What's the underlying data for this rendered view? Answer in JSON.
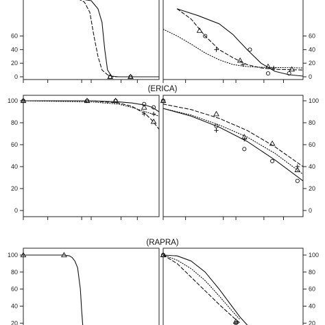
{
  "figure": {
    "group_labels": [
      "(ERICA)",
      "(RAPRA)"
    ]
  },
  "chart_data": [
    {
      "type": "line",
      "panel": "row1-left",
      "yticks": [
        "0",
        "20",
        "40",
        "60"
      ],
      "ylim": [
        0,
        110
      ],
      "series": [
        {
          "style": "solid",
          "curve": {
            "x": [
              0.0,
              0.4,
              0.5,
              0.55,
              0.58,
              0.6,
              0.62,
              0.65,
              0.7,
              1.0
            ],
            "y": [
              115,
              115,
              112,
              100,
              80,
              40,
              10,
              1,
              0,
              0
            ]
          },
          "markers": {
            "shape": "triangle",
            "x": [
              0.64,
              0.79
            ],
            "y": [
              0,
              0
            ]
          }
        },
        {
          "style": "dashed",
          "curve": {
            "x": [
              0.0,
              0.4,
              0.45,
              0.49,
              0.52,
              0.55,
              0.58,
              0.62,
              0.66,
              1.0
            ],
            "y": [
              115,
              115,
              110,
              95,
              60,
              30,
              10,
              3,
              0,
              0
            ]
          },
          "markers": {
            "shape": "circle",
            "x": [
              0.64,
              0.79
            ],
            "y": [
              0,
              0
            ]
          }
        }
      ]
    },
    {
      "type": "line",
      "panel": "row1-right",
      "yticks": [
        "0",
        "20",
        "40",
        "60"
      ],
      "ylim": [
        0,
        110
      ],
      "series": [
        {
          "style": "solid",
          "curve": {
            "x": [
              0.1,
              0.25,
              0.4,
              0.5,
              0.6,
              0.7,
              0.8,
              0.9,
              1.0
            ],
            "y": [
              100,
              90,
              78,
              62,
              40,
              20,
              8,
              3,
              1
            ]
          },
          "markers": {
            "shape": "circle",
            "x": [
              0.3,
              0.62,
              0.75,
              0.9
            ],
            "y": [
              60,
              40,
              5,
              5
            ]
          }
        },
        {
          "style": "dashed",
          "curve": {
            "x": [
              0.1,
              0.2,
              0.3,
              0.4,
              0.5,
              0.6,
              0.7,
              0.8,
              1.0
            ],
            "y": [
              100,
              85,
              60,
              40,
              28,
              18,
              13,
              11,
              10
            ]
          },
          "markers": {
            "shape": "triangle",
            "x": [
              0.26,
              0.55,
              0.75,
              0.92
            ],
            "y": [
              68,
              24,
              15,
              11
            ]
          }
        },
        {
          "style": "dotted",
          "curve": {
            "x": [
              0.0,
              0.1,
              0.2,
              0.3,
              0.4,
              0.5,
              0.6,
              0.7,
              1.0
            ],
            "y": [
              70,
              60,
              48,
              35,
              25,
              18,
              15,
              14,
              13
            ]
          },
          "markers": {
            "shape": "plus",
            "x": [
              0.38,
              0.57,
              0.79
            ],
            "y": [
              40,
              18,
              13
            ]
          }
        }
      ]
    },
    {
      "type": "line",
      "panel": "row2-left",
      "yticks": [
        "0",
        "20",
        "40",
        "60",
        "80",
        "100"
      ],
      "ylim": [
        0,
        100
      ],
      "series": [
        {
          "style": "solid",
          "curve": {
            "x": [
              0.0,
              0.5,
              0.7,
              0.8,
              0.9,
              0.95,
              1.0
            ],
            "y": [
              100,
              100,
              99,
              98,
              96,
              94,
              90
            ]
          },
          "markers": {
            "shape": "circle",
            "x": [
              0.0,
              0.47,
              0.68,
              0.89,
              0.96
            ],
            "y": [
              100,
              100,
              100,
              97,
              94
            ]
          }
        },
        {
          "style": "dashed",
          "curve": {
            "x": [
              0.0,
              0.5,
              0.7,
              0.8,
              0.9,
              0.95,
              1.0
            ],
            "y": [
              100,
              100,
              98,
              95,
              88,
              82,
              74
            ]
          },
          "markers": {
            "shape": "triangle",
            "x": [
              0.0,
              0.47,
              0.68,
              0.89,
              0.96
            ],
            "y": [
              100,
              100,
              100,
              94,
              81
            ]
          }
        },
        {
          "style": "dotted",
          "curve": {
            "x": [
              0.0,
              0.5,
              0.7,
              0.8,
              0.9,
              1.0
            ],
            "y": [
              100,
              99,
              97,
              94,
              90,
              86
            ]
          },
          "markers": {
            "shape": "plus",
            "x": [
              0.89,
              0.96
            ],
            "y": [
              88,
              88
            ]
          }
        }
      ]
    },
    {
      "type": "line",
      "panel": "row2-right",
      "yticks": [
        "0",
        "20",
        "40",
        "60",
        "80",
        "100"
      ],
      "ylim": [
        0,
        100
      ],
      "series": [
        {
          "style": "solid",
          "curve": {
            "x": [
              0.0,
              0.2,
              0.4,
              0.6,
              0.8,
              1.0
            ],
            "y": [
              93,
              86,
              76,
              63,
              46,
              27
            ]
          },
          "markers": {
            "shape": "circle",
            "x": [
              0.0,
              0.38,
              0.58,
              0.78,
              0.96
            ],
            "y": [
              100,
              77,
              56,
              45,
              27
            ]
          }
        },
        {
          "style": "dashed",
          "curve": {
            "x": [
              0.0,
              0.2,
              0.4,
              0.6,
              0.8,
              1.0
            ],
            "y": [
              97,
              92,
              84,
              73,
              58,
              40
            ]
          },
          "markers": {
            "shape": "triangle",
            "x": [
              0.0,
              0.38,
              0.58,
              0.78,
              0.96
            ],
            "y": [
              100,
              88,
              67,
              61,
              37
            ]
          }
        },
        {
          "style": "dotted",
          "curve": {
            "x": [
              0.0,
              0.2,
              0.4,
              0.6,
              0.8,
              1.0
            ],
            "y": [
              93,
              87,
              78,
              67,
              52,
              33
            ]
          },
          "markers": {
            "shape": "plus",
            "x": [
              0.38,
              0.58,
              0.96
            ],
            "y": [
              73,
              65,
              40
            ]
          }
        }
      ]
    },
    {
      "type": "line",
      "panel": "row3-left",
      "yticks": [
        "20",
        "40",
        "60",
        "80",
        "100"
      ],
      "ylim": [
        13,
        104
      ],
      "series": [
        {
          "style": "solid",
          "curve": {
            "x": [
              0.0,
              0.3,
              0.34,
              0.36,
              0.38,
              0.4,
              0.42,
              0.43,
              0.44
            ],
            "y": [
              100,
              100,
              99,
              97,
              93,
              85,
              60,
              35,
              13
            ]
          },
          "markers": {
            "shape": "triangle",
            "x": [
              0.0,
              0.3
            ],
            "y": [
              100,
              100
            ]
          }
        }
      ]
    },
    {
      "type": "line",
      "panel": "row3-right",
      "yticks": [
        "20",
        "40",
        "60",
        "80",
        "100"
      ],
      "ylim": [
        13,
        104
      ],
      "series": [
        {
          "style": "solid",
          "curve": {
            "x": [
              0.0,
              0.1,
              0.2,
              0.3,
              0.4,
              0.5,
              0.55,
              0.6
            ],
            "y": [
              100,
              99,
              93,
              80,
              60,
              38,
              27,
              18
            ]
          },
          "markers": {
            "shape": "triangle",
            "x": [
              0.0,
              0.52
            ],
            "y": [
              100,
              22
            ]
          }
        },
        {
          "style": "dashed",
          "curve": {
            "x": [
              0.0,
              0.1,
              0.2,
              0.3,
              0.4,
              0.5,
              0.55
            ],
            "y": [
              100,
              90,
              74,
              58,
              42,
              27,
              20
            ]
          },
          "markers": {
            "shape": "circle",
            "x": [
              0.0,
              0.52
            ],
            "y": [
              100,
              20
            ]
          }
        },
        {
          "style": "dotted",
          "curve": {
            "x": [
              0.0,
              0.1,
              0.2,
              0.3,
              0.4,
              0.5,
              0.55
            ],
            "y": [
              100,
              94,
              84,
              70,
              52,
              33,
              24
            ]
          },
          "markers": {
            "shape": "plus",
            "x": [
              0.52
            ],
            "y": [
              20
            ]
          }
        }
      ]
    }
  ]
}
